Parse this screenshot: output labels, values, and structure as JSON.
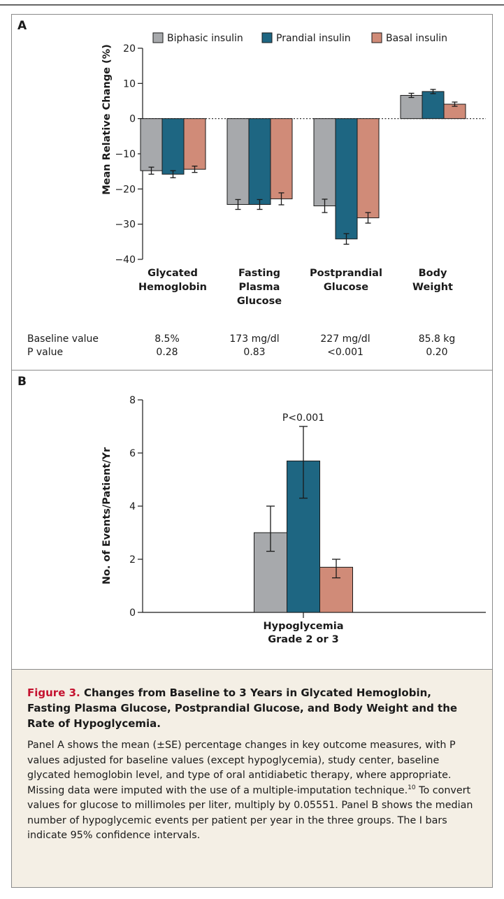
{
  "panel_a": {
    "letter": "A",
    "ylabel": "Mean Relative Change (%)",
    "stats": {
      "row_labels": [
        "Baseline value",
        "P value"
      ],
      "baseline_values": [
        "8.5%",
        "173 mg/dl",
        "227 mg/dl",
        "85.8 kg"
      ],
      "p_values": [
        "0.28",
        "0.83",
        "<0.001",
        "0.20"
      ]
    }
  },
  "panel_b": {
    "letter": "B",
    "ylabel": "No. of Events/Patient/Yr",
    "annotation": "P<0.001"
  },
  "colors": {
    "biphasic": "#a7a9ac",
    "prandial": "#1e6682",
    "basal": "#d08b78"
  },
  "chart_data": [
    {
      "type": "bar",
      "title": "",
      "xlabel": "",
      "ylabel": "Mean Relative Change (%)",
      "ylim": [
        -40,
        20
      ],
      "yticks": [
        "20",
        "10",
        "0",
        "−10",
        "−20",
        "−30",
        "−40"
      ],
      "ytick_values": [
        20,
        10,
        0,
        -10,
        -20,
        -30,
        -40
      ],
      "legend_position": "top",
      "grid": false,
      "categories": [
        [
          "Glycated",
          "Hemoglobin"
        ],
        [
          "Fasting",
          "Plasma",
          "Glucose"
        ],
        [
          "Postprandial",
          "Glucose"
        ],
        [
          "Body",
          "Weight"
        ]
      ],
      "series": [
        {
          "name": "Biphasic insulin",
          "color": "#a7a9ac",
          "values": [
            -14.8,
            -24.4,
            -24.8,
            6.6
          ],
          "err": [
            1.0,
            1.4,
            1.9,
            0.6
          ]
        },
        {
          "name": "Prandial insulin",
          "color": "#1e6682",
          "values": [
            -15.8,
            -24.4,
            -34.2,
            7.7
          ],
          "err": [
            1.0,
            1.4,
            1.5,
            0.6
          ]
        },
        {
          "name": "Basal insulin",
          "color": "#d08b78",
          "values": [
            -14.4,
            -22.8,
            -28.2,
            4.1
          ],
          "err": [
            0.9,
            1.7,
            1.5,
            0.6
          ]
        }
      ]
    },
    {
      "type": "bar",
      "title": "",
      "xlabel": "",
      "ylabel": "No. of Events/Patient/Yr",
      "ylim": [
        0,
        8
      ],
      "yticks": [
        "0",
        "2",
        "4",
        "6",
        "8"
      ],
      "ytick_values": [
        0,
        2,
        4,
        6,
        8
      ],
      "grid": false,
      "categories": [
        [
          "Hypoglycemia",
          "Grade 2 or 3"
        ]
      ],
      "series": [
        {
          "name": "Biphasic insulin",
          "color": "#a7a9ac",
          "values": [
            3.0
          ],
          "ci_low": [
            2.3
          ],
          "ci_high": [
            4.0
          ]
        },
        {
          "name": "Prandial insulin",
          "color": "#1e6682",
          "values": [
            5.7
          ],
          "ci_low": [
            4.3
          ],
          "ci_high": [
            7.0
          ]
        },
        {
          "name": "Basal insulin",
          "color": "#d08b78",
          "values": [
            1.7
          ],
          "ci_low": [
            1.3
          ],
          "ci_high": [
            2.0
          ]
        }
      ]
    }
  ],
  "caption": {
    "label": "Figure 3.",
    "title": "Changes from Baseline to 3 Years in Glycated Hemoglobin, Fasting Plasma Glucose, Postprandial Glucose, and Body Weight and the Rate of Hypoglycemia.",
    "body_part1": "Panel A shows the mean (±SE) percentage changes in key outcome measures, with P values adjusted for baseline values (except hypoglycemia), study center, baseline glycated hemoglobin level, and type of oral antidiabetic therapy, where appropriate. Missing data were imputed with the use of a multiple-imputation technique.",
    "body_ref": "10",
    "body_part2": " To convert values for glucose to millimoles per liter, multiply by 0.05551. Panel B shows the median number of hypoglycemic events per patient per year in the three groups. The I bars indicate 95% confidence intervals."
  }
}
